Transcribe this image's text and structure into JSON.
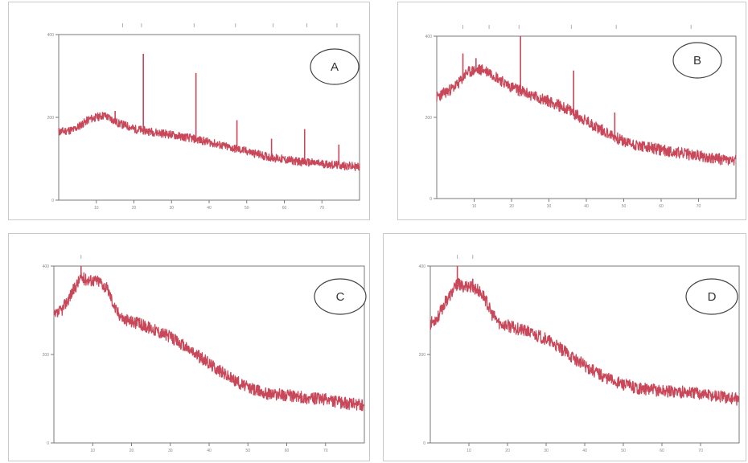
{
  "colors": {
    "trace": "#c8485a",
    "marker": "#b0b0b0",
    "frame": "#7a7a7a",
    "panel_border": "#c9c9c9"
  },
  "chart_data": [
    {
      "type": "line",
      "panel_label": "A",
      "x_ticks": [
        "10",
        "20",
        "30",
        "40",
        "50",
        "60",
        "70"
      ],
      "y_ticks": [
        "0",
        "200",
        "400"
      ],
      "xlim": [
        0,
        80
      ],
      "ylim": [
        0,
        400
      ],
      "grid": false,
      "noise_amplitude": 10,
      "series": [
        {
          "x": [
            0,
            4,
            8,
            10,
            12,
            14,
            16,
            18,
            20,
            25,
            30,
            35,
            40,
            45,
            50,
            55,
            60,
            65,
            70,
            75,
            80
          ],
          "y": [
            165,
            170,
            195,
            200,
            205,
            196,
            185,
            180,
            172,
            165,
            158,
            150,
            140,
            128,
            118,
            106,
            98,
            92,
            88,
            84,
            80
          ],
          "peaks": [
            [
              15,
              25
            ],
            [
              22.5,
              185
            ],
            [
              36.5,
              160
            ],
            [
              47.4,
              70
            ],
            [
              56.6,
              45
            ],
            [
              65.4,
              80
            ],
            [
              74.5,
              50
            ]
          ]
        }
      ],
      "reference_marks": [
        17,
        22,
        36,
        47,
        57,
        66,
        74
      ]
    },
    {
      "type": "line",
      "panel_label": "B",
      "x_ticks": [
        "10",
        "20",
        "30",
        "40",
        "50",
        "60",
        "70"
      ],
      "y_ticks": [
        "0",
        "200",
        "400"
      ],
      "xlim": [
        0,
        80
      ],
      "ylim": [
        0,
        400
      ],
      "grid": false,
      "noise_amplitude": 14,
      "series": [
        {
          "x": [
            0,
            4,
            6,
            8,
            10,
            12,
            14,
            16,
            18,
            20,
            25,
            30,
            35,
            40,
            45,
            50,
            55,
            60,
            65,
            70,
            75,
            80
          ],
          "y": [
            250,
            270,
            285,
            310,
            315,
            318,
            312,
            300,
            285,
            275,
            255,
            240,
            220,
            190,
            165,
            140,
            128,
            120,
            112,
            105,
            98,
            92
          ],
          "peaks": [
            [
              7,
              60
            ],
            [
              10.5,
              30
            ],
            [
              22.4,
              140
            ],
            [
              36.6,
              105
            ],
            [
              47.6,
              60
            ]
          ]
        }
      ],
      "reference_marks": [
        7,
        14,
        22,
        36,
        48,
        68
      ]
    },
    {
      "type": "line",
      "panel_label": "C",
      "x_ticks": [
        "10",
        "20",
        "30",
        "40",
        "50",
        "60",
        "70"
      ],
      "y_ticks": [
        "0",
        "200",
        "400"
      ],
      "xlim": [
        0,
        80
      ],
      "ylim": [
        0,
        400
      ],
      "grid": false,
      "noise_amplitude": 14,
      "series": [
        {
          "x": [
            0,
            2,
            4,
            6,
            7,
            8,
            10,
            12,
            14,
            16,
            18,
            20,
            25,
            30,
            35,
            40,
            45,
            50,
            55,
            60,
            65,
            70,
            75,
            80
          ],
          "y": [
            285,
            300,
            330,
            360,
            375,
            370,
            368,
            365,
            345,
            300,
            280,
            275,
            260,
            240,
            210,
            180,
            150,
            125,
            112,
            108,
            102,
            98,
            90,
            84
          ],
          "peaks": [
            [
              7,
              50
            ]
          ]
        }
      ],
      "reference_marks": [
        7
      ]
    },
    {
      "type": "line",
      "panel_label": "D",
      "x_ticks": [
        "10",
        "20",
        "30",
        "40",
        "50",
        "60",
        "70"
      ],
      "y_ticks": [
        "0",
        "200",
        "400"
      ],
      "xlim": [
        0,
        80
      ],
      "ylim": [
        0,
        400
      ],
      "grid": false,
      "noise_amplitude": 14,
      "series": [
        {
          "x": [
            0,
            2,
            4,
            6,
            7,
            8,
            10,
            12,
            14,
            16,
            18,
            20,
            25,
            30,
            35,
            40,
            45,
            50,
            55,
            60,
            65,
            70,
            75,
            80
          ],
          "y": [
            270,
            285,
            320,
            345,
            360,
            355,
            355,
            348,
            330,
            290,
            270,
            265,
            252,
            235,
            205,
            175,
            150,
            132,
            122,
            118,
            116,
            112,
            105,
            98
          ],
          "peaks": [
            [
              7,
              40
            ],
            [
              11,
              20
            ]
          ]
        }
      ],
      "reference_marks": [
        7,
        11
      ]
    }
  ]
}
